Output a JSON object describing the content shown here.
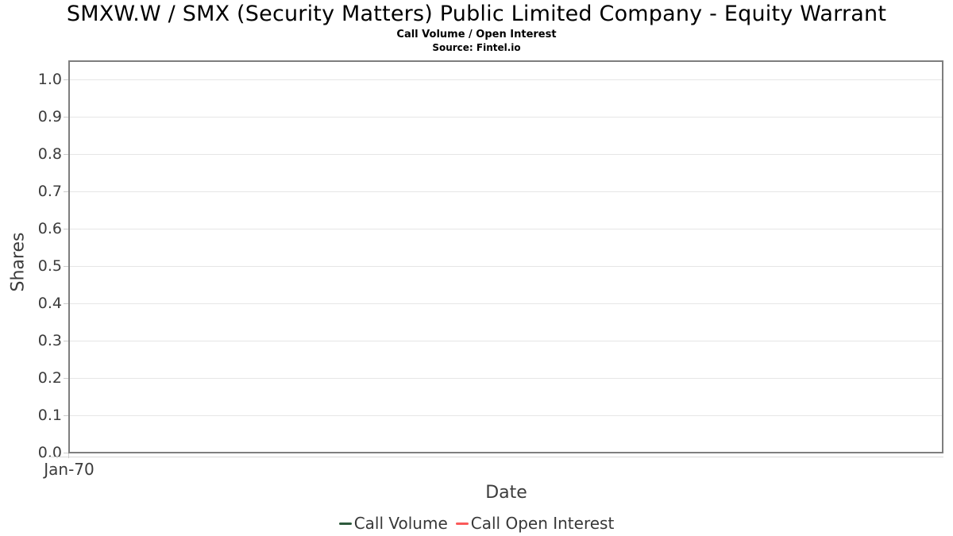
{
  "chart_data": {
    "type": "line",
    "title": "SMXW.W / SMX (Security Matters) Public Limited Company - Equity Warrant",
    "subtitle": "Call Volume / Open Interest",
    "source": "Source: Fintel.io",
    "xlabel": "Date",
    "ylabel": "Shares",
    "ylim": [
      0.0,
      1.05
    ],
    "yticks": [
      0.0,
      0.1,
      0.2,
      0.3,
      0.4,
      0.5,
      0.6,
      0.7,
      0.8,
      0.9,
      1.0
    ],
    "ytick_labels": [
      "0.0",
      "0.1",
      "0.2",
      "0.3",
      "0.4",
      "0.5",
      "0.6",
      "0.7",
      "0.8",
      "0.9",
      "1.0"
    ],
    "xtick_labels": [
      "Jan-70"
    ],
    "grid": true,
    "legend_position": "bottom",
    "series": [
      {
        "name": "Call Volume",
        "color": "#2d5a3c",
        "x": [],
        "values": []
      },
      {
        "name": "Call Open Interest",
        "color": "#fa5a5a",
        "x": [],
        "values": []
      }
    ]
  },
  "colors": {
    "plot_border": "#7e7e7e",
    "gridline": "#e6e6e6",
    "axis_line": "#d9d9d9",
    "tick": "#cccccc",
    "axis_text": "#3c3c3c",
    "title_text": "#000000",
    "legend_text": "#383838",
    "call_volume": "#2d5a3c",
    "call_open_interest": "#fa5a5a"
  }
}
